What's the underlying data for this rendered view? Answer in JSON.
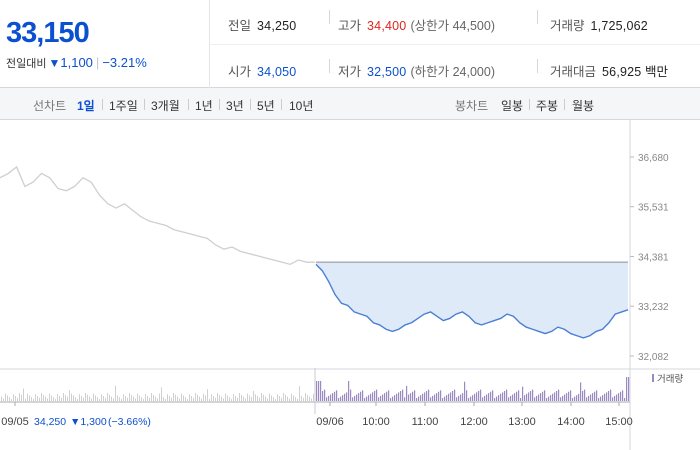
{
  "header": {
    "current_price": "33,150",
    "change_label": "전일대비",
    "change_icon": "triangle-down-icon",
    "change_value": "1,100",
    "change_rate": "−3.21%",
    "stats": {
      "prev_close": {
        "label": "전일",
        "value": "34,250"
      },
      "high": {
        "label": "고가",
        "value": "34,400",
        "sub": "(상한가 44,500)"
      },
      "volume": {
        "label": "거래량",
        "value": "1,725,062"
      },
      "open": {
        "label": "시가",
        "value": "34,050"
      },
      "low": {
        "label": "저가",
        "value": "32,500",
        "sub": "(하한가 24,000)"
      },
      "amount": {
        "label": "거래대금",
        "value": "56,925",
        "unit": "백만"
      }
    },
    "colors": {
      "down": "#0b50d0",
      "up": "#e0261e"
    }
  },
  "period": {
    "line_label": "선차트",
    "line_tabs": [
      "1일",
      "1주일",
      "3개월",
      "1년",
      "3년",
      "5년",
      "10년"
    ],
    "active": "1일",
    "candle_label": "봉차트",
    "candle_tabs": [
      "일봉",
      "주봉",
      "월봉"
    ]
  },
  "chart_data": {
    "type": "line",
    "y_ticks": [
      "36,680",
      "35,531",
      "34,381",
      "33,232",
      "32,082"
    ],
    "ylim": [
      32082,
      36680
    ],
    "reference_value": 34250,
    "x_ticks": [
      "09/05",
      "09/06",
      "10:00",
      "11:00",
      "12:00",
      "13:00",
      "14:00",
      "15:00"
    ],
    "previous_day_label": {
      "date": "09/05",
      "close": "34,250",
      "change": "▼1,300",
      "rate": "(−3.66%)"
    },
    "volume_legend": "거래량",
    "colors": {
      "prev_line": "#cfcfcf",
      "today_line": "#4a7fd4",
      "fill": "#dfeaf8",
      "volume": "#9b8ac2",
      "prev_volume": "#d0d0d0"
    },
    "prev_day_series": [
      36200,
      36300,
      36450,
      36000,
      36100,
      36300,
      36200,
      35950,
      35900,
      36000,
      36200,
      36100,
      35800,
      35600,
      35500,
      35600,
      35450,
      35300,
      35200,
      35150,
      35100,
      35000,
      34950,
      34900,
      34850,
      34800,
      34650,
      34550,
      34600,
      34500,
      34450,
      34400,
      34350,
      34300,
      34250,
      34200,
      34300,
      34250,
      34250
    ],
    "today_series": [
      34200,
      34050,
      33800,
      33500,
      33300,
      33250,
      33100,
      33050,
      33000,
      32850,
      32800,
      32700,
      32650,
      32700,
      32800,
      32850,
      32950,
      33050,
      33100,
      33000,
      32900,
      32950,
      33050,
      33100,
      33000,
      32850,
      32800,
      32850,
      32900,
      32950,
      33050,
      33000,
      32850,
      32750,
      32700,
      32650,
      32600,
      32650,
      32750,
      32700,
      32600,
      32550,
      32500,
      32550,
      32650,
      32700,
      32850,
      33050,
      33100,
      33150
    ]
  }
}
